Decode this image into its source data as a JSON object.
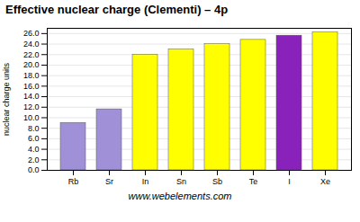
{
  "chart_data": {
    "type": "bar",
    "title": "Effective nuclear charge (Clementi) – 4p",
    "categories": [
      "Rb",
      "Sr",
      "In",
      "Sn",
      "Sb",
      "Te",
      "I",
      "Xe"
    ],
    "values": [
      9.0,
      11.6,
      22.0,
      23.0,
      24.0,
      24.8,
      25.6,
      26.2
    ],
    "colors": [
      "#a090d8",
      "#a090d8",
      "#ffff00",
      "#ffff00",
      "#ffff00",
      "#ffff00",
      "#8822bb",
      "#ffff00"
    ],
    "ylabel": "nuclear charge units",
    "ylim": [
      0.0,
      27.0
    ],
    "yticks": [
      {
        "value": 0,
        "label": "0.0"
      },
      {
        "value": 2,
        "label": "2.0"
      },
      {
        "value": 4,
        "label": "4.0"
      },
      {
        "value": 6,
        "label": "6.0"
      },
      {
        "value": 8,
        "label": "8.0"
      },
      {
        "value": 10,
        "label": "10.0"
      },
      {
        "value": 12,
        "label": "12.0"
      },
      {
        "value": 14,
        "label": "14.0"
      },
      {
        "value": 16,
        "label": "16.0"
      },
      {
        "value": 18,
        "label": "18.0"
      },
      {
        "value": 20,
        "label": "20.0"
      },
      {
        "value": 22,
        "label": "22.0"
      },
      {
        "value": 24,
        "label": "24.0"
      },
      {
        "value": 26,
        "label": "26.0"
      }
    ],
    "grid": true,
    "annotations": [
      "www.webelements.com"
    ]
  }
}
